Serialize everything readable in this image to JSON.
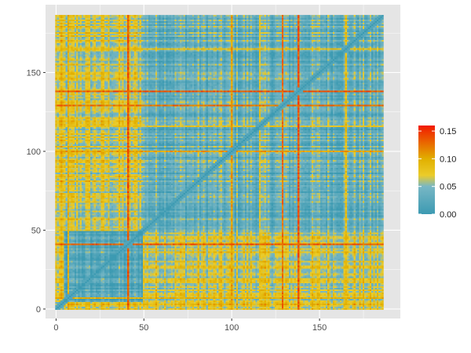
{
  "chart_data": {
    "type": "heatmap",
    "title": "",
    "xlabel": "",
    "ylabel": "",
    "n": 187,
    "xlim": [
      -6,
      196
    ],
    "ylim": [
      -6,
      193
    ],
    "x_ticks": [
      0,
      50,
      100,
      150
    ],
    "y_ticks": [
      0,
      50,
      100,
      150
    ],
    "x_tick_labels": [
      "0",
      "50",
      "100",
      "150"
    ],
    "y_tick_labels": [
      "0",
      "50",
      "100",
      "150"
    ],
    "grid": true,
    "panel_background": "#e5e5e5",
    "gridline_color": "#ffffff",
    "value_range": [
      0,
      0.16
    ],
    "colorscale": [
      {
        "value": 0.0,
        "color": "#3c9ab2"
      },
      {
        "value": 0.05,
        "color": "#78b7c5"
      },
      {
        "value": 0.07,
        "color": "#ebcc2a"
      },
      {
        "value": 0.1,
        "color": "#e1af00"
      },
      {
        "value": 0.16,
        "color": "#f21a00"
      }
    ],
    "block_structure": {
      "description": "symmetric distance-like matrix, diagonal near 0",
      "blocks": [
        {
          "from": 0,
          "to": 5,
          "level": 0.03
        },
        {
          "from": 5,
          "to": 50,
          "level": 0.02
        },
        {
          "from": 50,
          "to": 187,
          "level": 0.035
        }
      ],
      "cross_levels": [
        {
          "a": [
            5,
            50
          ],
          "b": [
            50,
            187
          ],
          "level": 0.065
        },
        {
          "a": [
            0,
            5
          ],
          "b": [
            5,
            187
          ],
          "level": 0.07
        }
      ]
    },
    "hot_lines": [
      {
        "index": 41,
        "level": 0.15
      },
      {
        "index": 100,
        "level": 0.12
      },
      {
        "index": 129,
        "level": 0.14
      },
      {
        "index": 138,
        "level": 0.15
      },
      {
        "index": 7,
        "level": 0.11
      },
      {
        "index": 165,
        "level": 0.1
      },
      {
        "index": 116,
        "level": 0.09
      }
    ],
    "legend": {
      "position": "right",
      "ticks": [
        0.0,
        0.05,
        0.1,
        0.15
      ],
      "tick_labels": [
        "0.00",
        "0.05",
        "0.10",
        "0.15"
      ]
    }
  }
}
